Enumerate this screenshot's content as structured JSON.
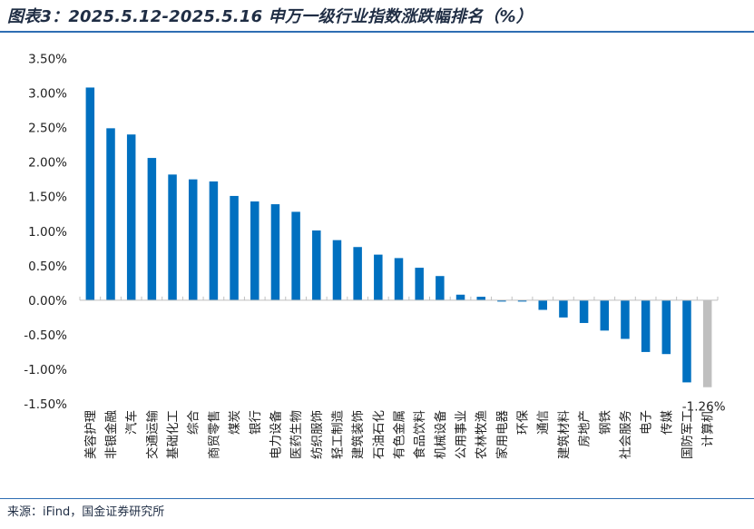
{
  "header": {
    "title": "图表3：2025.5.12-2025.5.16 申万一级行业指数涨跌幅排名（%）"
  },
  "footer": {
    "source": "来源：iFind，国金证券研究所"
  },
  "colors": {
    "bar_primary": "#0070c0",
    "bar_highlight": "#bfbfbf",
    "axis": "#bfbfbf",
    "rule": "#2e6db3"
  },
  "chart_data": {
    "type": "bar",
    "title": "",
    "xlabel": "",
    "ylabel": "",
    "ylim": [
      -0.015,
      0.035
    ],
    "yticks": [
      0.035,
      0.03,
      0.025,
      0.02,
      0.015,
      0.01,
      0.005,
      0.0,
      -0.005,
      -0.01,
      -0.015
    ],
    "ytick_labels": [
      "3.50%",
      "3.00%",
      "2.50%",
      "2.00%",
      "1.50%",
      "1.00%",
      "0.50%",
      "0.00%",
      "-0.50%",
      "-1.00%",
      "-1.50%"
    ],
    "grid": false,
    "legend": "none",
    "categories": [
      "美容护理",
      "非银金融",
      "汽车",
      "交通运输",
      "基础化工",
      "综合",
      "商贸零售",
      "煤炭",
      "银行",
      "电力设备",
      "医药生物",
      "纺织服饰",
      "轻工制造",
      "建筑装饰",
      "石油石化",
      "有色金属",
      "食品饮料",
      "机械设备",
      "公用事业",
      "农林牧渔",
      "家用电器",
      "环保",
      "通信",
      "建筑材料",
      "房地产",
      "钢铁",
      "社会服务",
      "电子",
      "传媒",
      "国防军工",
      "计算机"
    ],
    "values": [
      0.0308,
      0.0249,
      0.024,
      0.0206,
      0.0182,
      0.0175,
      0.0172,
      0.0151,
      0.0143,
      0.0139,
      0.0128,
      0.0101,
      0.0087,
      0.0077,
      0.0066,
      0.0061,
      0.0047,
      0.0035,
      0.0008,
      0.0005,
      -0.0002,
      -0.0002,
      -0.0014,
      -0.0025,
      -0.0033,
      -0.0044,
      -0.0056,
      -0.0075,
      -0.0078,
      -0.0119,
      -0.0126
    ],
    "highlight_index": 30,
    "data_labels": [
      {
        "index": 30,
        "text": "-1.26%"
      }
    ]
  }
}
